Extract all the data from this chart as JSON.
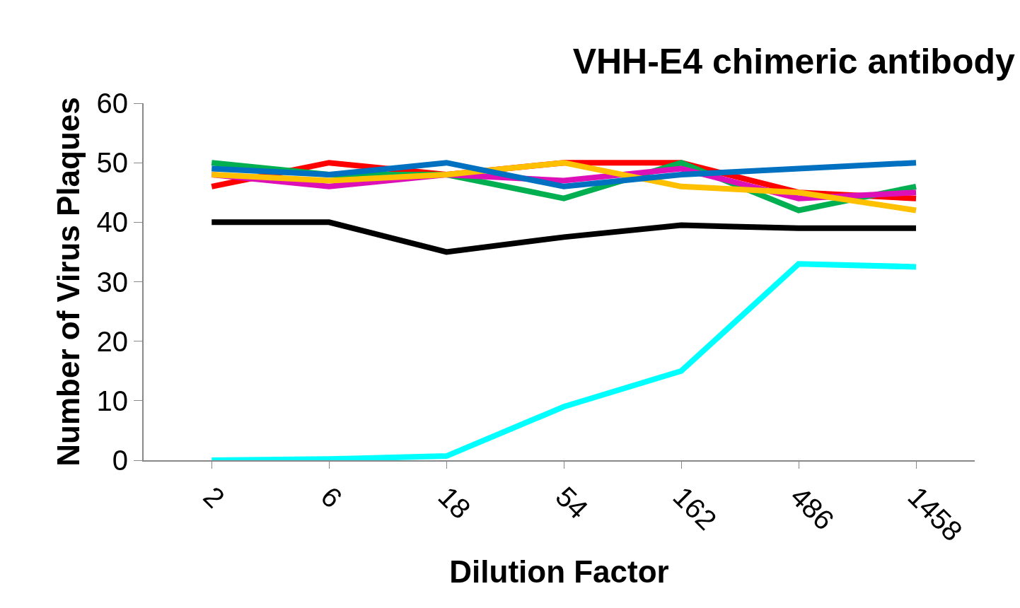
{
  "chart_data": {
    "type": "line",
    "title": "VHH-E4 chimeric antibody",
    "xlabel": "Dilution Factor",
    "ylabel": "Number of Virus Plaques",
    "categories": [
      "2",
      "6",
      "18",
      "54",
      "162",
      "486",
      "1458"
    ],
    "series": [
      {
        "color": "#ff0000",
        "values": [
          46,
          50,
          48,
          50,
          50,
          45,
          44
        ]
      },
      {
        "color": "#00b050",
        "values": [
          50,
          48,
          48,
          44,
          50,
          42,
          46
        ]
      },
      {
        "color": "#dd10b8",
        "values": [
          48,
          46,
          48,
          47,
          49,
          44,
          45
        ]
      },
      {
        "color": "#ffc000",
        "values": [
          48,
          47,
          48,
          50,
          46,
          45,
          42
        ]
      },
      {
        "color": "#0070c0",
        "values": [
          49,
          48,
          50,
          46,
          48,
          49,
          50
        ]
      },
      {
        "color": "#000000",
        "values": [
          40,
          40,
          35,
          37.5,
          39.5,
          39,
          39
        ]
      },
      {
        "color": "#00ffff",
        "values": [
          0,
          0.2,
          0.7,
          9,
          15,
          33,
          32.5
        ]
      }
    ],
    "ylim": [
      0,
      60
    ],
    "yticks": [
      0,
      10,
      20,
      30,
      40,
      50,
      60
    ],
    "grid": false,
    "marker": "none",
    "line_style": "solid"
  }
}
